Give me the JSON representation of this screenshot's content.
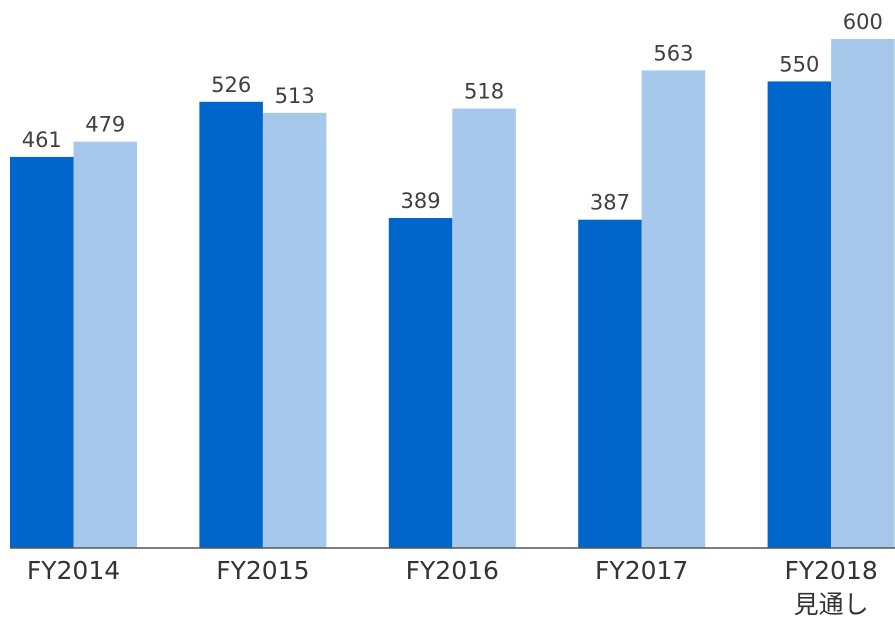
{
  "chart_data": {
    "type": "bar",
    "categories": [
      "FY2014",
      "FY2015",
      "FY2016",
      "FY2017",
      "FY2018\n見通し"
    ],
    "series": [
      {
        "color": "#0066cc",
        "values": [
          461,
          526,
          389,
          387,
          550
        ]
      },
      {
        "color": "#a6c8eb",
        "values": [
          479,
          513,
          518,
          563,
          600
        ]
      }
    ],
    "ylim": [
      0,
      600
    ]
  }
}
